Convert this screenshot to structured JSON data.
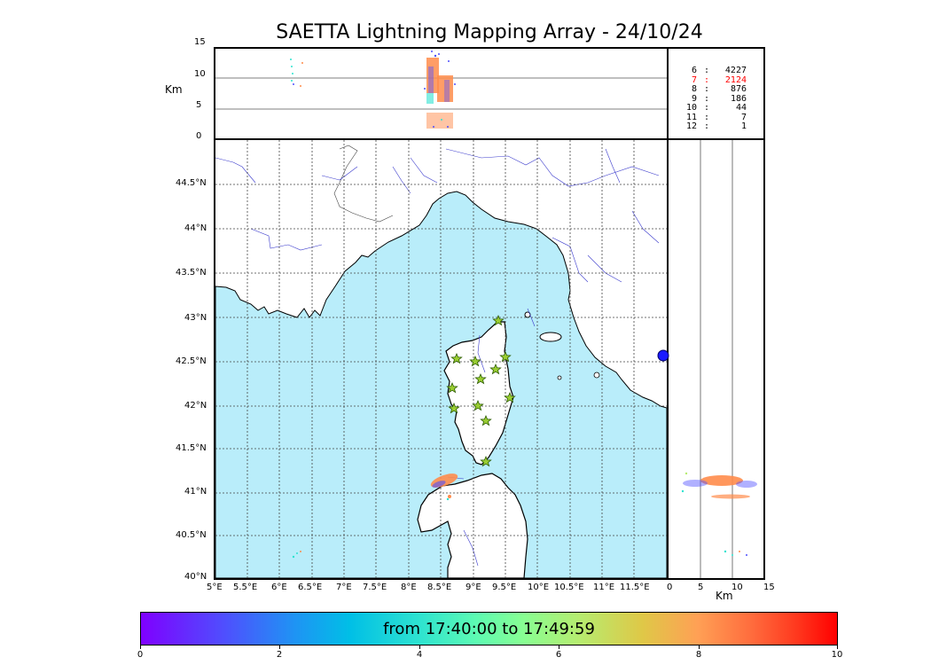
{
  "title": "SAETTA Lightning Mapping Array - 24/10/24",
  "altitude_axis": {
    "unit": "Km",
    "ticks": [
      "15",
      "10",
      "5",
      "0"
    ]
  },
  "side_axis": {
    "unit": "Km",
    "ticks": [
      "0",
      "5",
      "10",
      "15"
    ]
  },
  "longitude_ticks": [
    "5°E",
    "5.5°E",
    "6°E",
    "6.5°E",
    "7°E",
    "7.5°E",
    "8°E",
    "8.5°E",
    "9°E",
    "9.5°E",
    "10°E",
    "10.5°E",
    "11°E",
    "11.5°E"
  ],
  "latitude_ticks": [
    "44.5°N",
    "44°N",
    "43.5°N",
    "43°N",
    "42.5°N",
    "42°N",
    "41.5°N",
    "41°N",
    "40.5°N",
    "40°N"
  ],
  "stats": {
    "rows": [
      {
        "level": "6",
        "sep": ":",
        "count": "4227",
        "color": "#000000"
      },
      {
        "level": "7",
        "sep": ":",
        "count": "2124",
        "color": "#ff0000"
      },
      {
        "level": "8",
        "sep": ":",
        "count": "876",
        "color": "#000000"
      },
      {
        "level": "9",
        "sep": ":",
        "count": "186",
        "color": "#000000"
      },
      {
        "level": "10",
        "sep": ":",
        "count": "44",
        "color": "#000000"
      },
      {
        "level": "11",
        "sep": ":",
        "count": "7",
        "color": "#000000"
      },
      {
        "level": "12",
        "sep": ":",
        "count": "1",
        "color": "#000000"
      }
    ]
  },
  "colorbar": {
    "label": "from 17:40:00 to 17:49:59",
    "ticks": [
      "0",
      "2",
      "4",
      "6",
      "8",
      "10"
    ],
    "range": [
      0,
      10
    ]
  },
  "colors": {
    "sea": "#b9edfa",
    "land": "#ffffff",
    "rivers": "#3a3acc",
    "station": "#9acd32",
    "dominant_source": "#ff8c4b"
  }
}
